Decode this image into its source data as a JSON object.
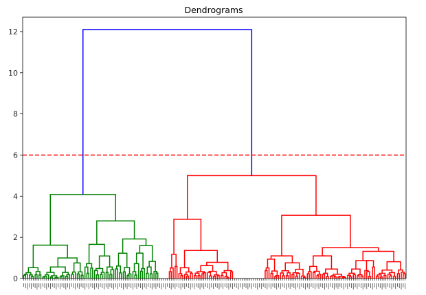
{
  "chart_data": {
    "type": "dendrogram",
    "title": "Dendrograms",
    "xlabel": "",
    "ylabel": "",
    "ylim": [
      0,
      12.7
    ],
    "yticks": [
      0,
      2,
      4,
      6,
      8,
      10,
      12
    ],
    "grid": false,
    "legend": "none",
    "leaf_count": 200,
    "threshold": {
      "value": 6,
      "style": "dashed",
      "color": "#ff0000"
    },
    "colors": {
      "root": "#0000ff",
      "cluster_1": "#008000",
      "cluster_2": "#ff0000",
      "axis": "#000000"
    },
    "root_merge_height": 12.1,
    "clusters": [
      {
        "id": "cluster_1",
        "color": "#008000",
        "merge_height": 4.08,
        "leaves": 76,
        "sub_merges": [
          {
            "height": 2.8,
            "leaves": 44
          },
          {
            "height": 1.92,
            "leaves": 27
          },
          {
            "height": 1.66,
            "leaves": 11
          },
          {
            "height": 1.62,
            "leaves": 32
          },
          {
            "height": 1.4,
            "leaves": 16
          },
          {
            "height": 1.6,
            "leaves": 11
          }
        ]
      },
      {
        "id": "cluster_2",
        "color": "#ff0000",
        "merge_height": 5.0,
        "leaves": 124,
        "sub_merges": [
          {
            "height": 3.07,
            "leaves": 74
          },
          {
            "height": 2.88,
            "leaves": 50
          },
          {
            "height": 1.5,
            "leaves": 45
          },
          {
            "height": 1.4,
            "leaves": 35
          },
          {
            "height": 1.1,
            "leaves": 22
          },
          {
            "height": 1.32,
            "leaves": 15
          }
        ]
      }
    ]
  }
}
